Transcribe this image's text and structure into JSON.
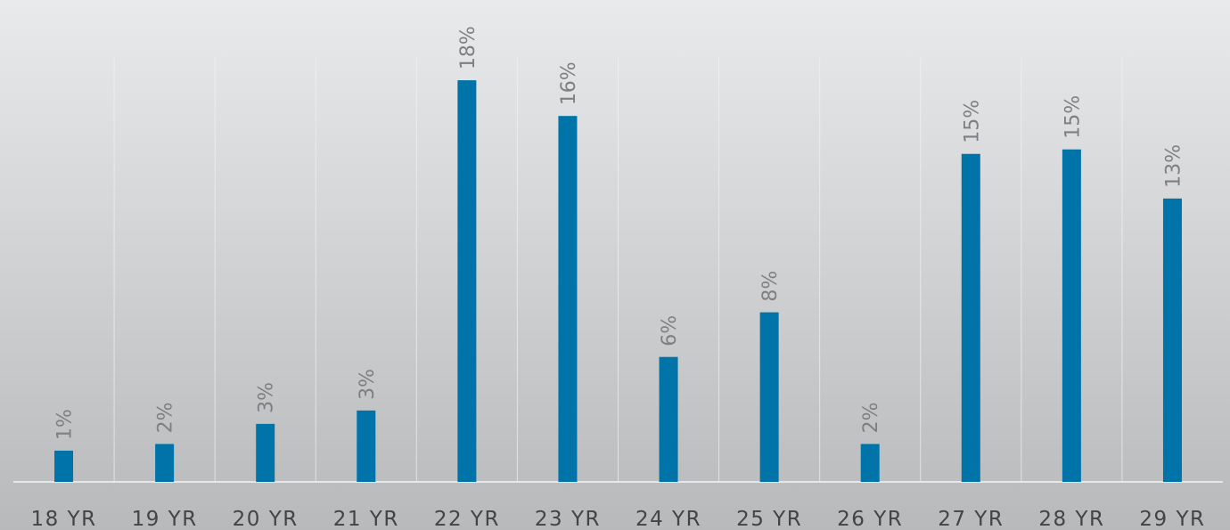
{
  "chart_data": {
    "type": "bar",
    "categories": [
      "18 YR",
      "19 YR",
      "20 YR",
      "21 YR",
      "22 YR",
      "23 YR",
      "24 YR",
      "25 YR",
      "26 YR",
      "27 YR",
      "28 YR",
      "29 YR"
    ],
    "values": [
      1.4,
      1.7,
      2.6,
      3.2,
      18.0,
      16.4,
      5.6,
      7.6,
      1.7,
      14.7,
      14.9,
      12.7
    ],
    "value_labels": [
      "1%",
      "2%",
      "3%",
      "3%",
      "18%",
      "16%",
      "6%",
      "8%",
      "2%",
      "15%",
      "15%",
      "13%"
    ],
    "color": "#0073a8"
  }
}
